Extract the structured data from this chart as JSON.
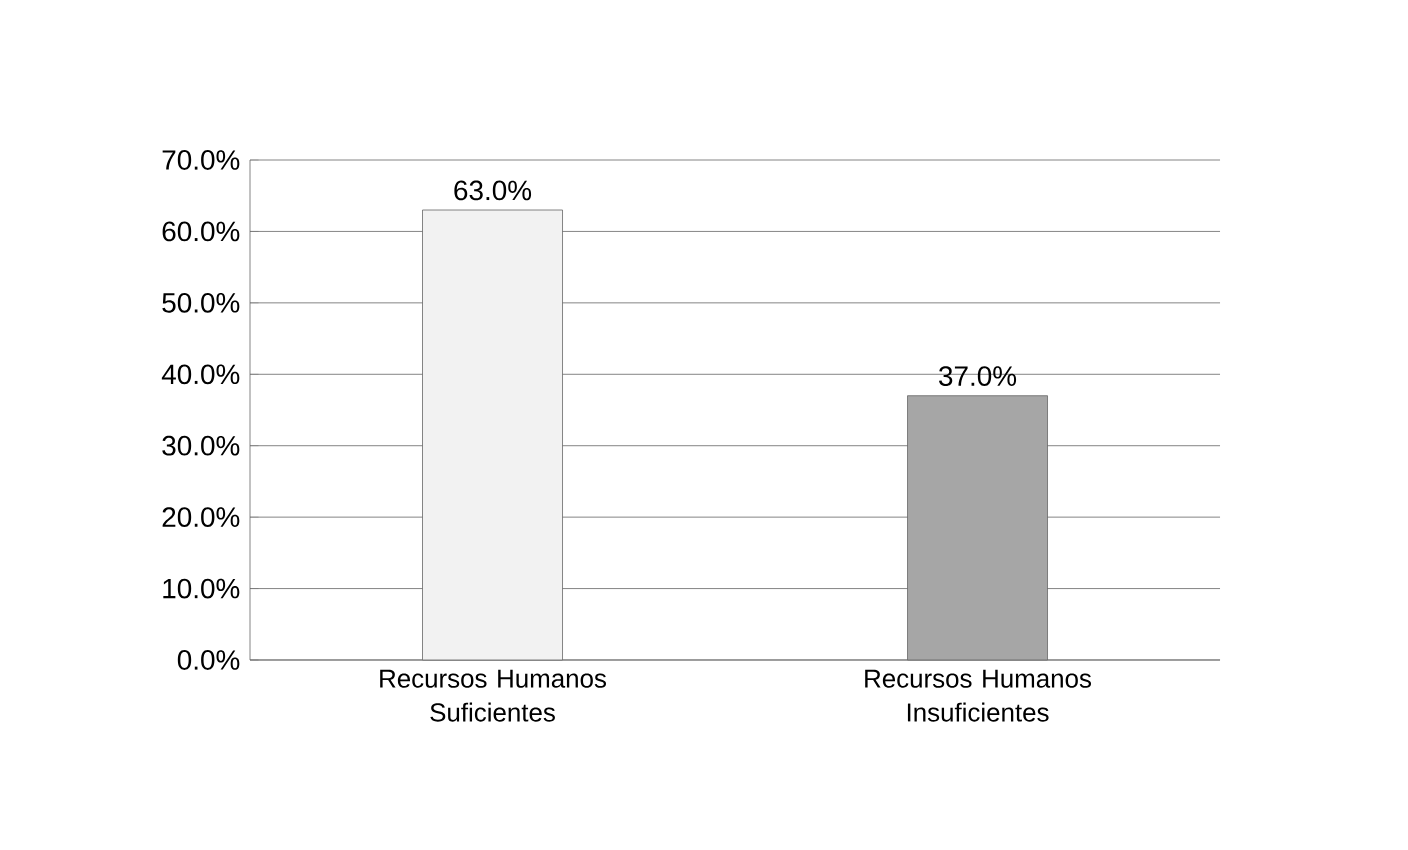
{
  "chart_data": {
    "type": "bar",
    "categories": [
      "Recursos Humanos Suficientes",
      "Recursos Humanos Insuficientes"
    ],
    "values": [
      63.0,
      37.0
    ],
    "colors": [
      "#f2f2f2",
      "#a6a6a6"
    ],
    "value_labels": [
      "63.0%",
      "37.0%"
    ],
    "ylim": [
      0,
      70
    ],
    "yticks": [
      {
        "value": 0,
        "label": "0.0%"
      },
      {
        "value": 10,
        "label": "10.0%"
      },
      {
        "value": 20,
        "label": "20.0%"
      },
      {
        "value": 30,
        "label": "30.0%"
      },
      {
        "value": 40,
        "label": "40.0%"
      },
      {
        "value": 50,
        "label": "50.0%"
      },
      {
        "value": 60,
        "label": "60.0%"
      },
      {
        "value": 70,
        "label": "70.0%"
      }
    ],
    "grid": "y"
  }
}
